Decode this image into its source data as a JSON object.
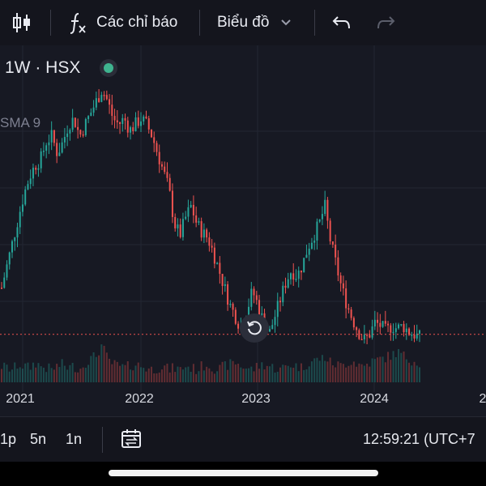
{
  "toolbar": {
    "candle_icon": "candlestick-icon",
    "indicators_label": "Các chỉ báo",
    "chart_type_label": "Biểu đồ",
    "undo_icon": "undo-icon",
    "redo_icon": "redo-icon"
  },
  "legend": {
    "text": "1W · HSX",
    "status_color": "#3fb48f",
    "sma_label": "SMA 9"
  },
  "colors": {
    "up": "#26a69a",
    "down": "#ef5350",
    "background": "#171923",
    "price_line": "#ef5350"
  },
  "chart_data": {
    "type": "candlestick",
    "interval": "1W",
    "x_ticks": [
      "2021",
      "2022",
      "2023",
      "2024",
      "2"
    ],
    "price_shape": [
      0.28,
      0.36,
      0.44,
      0.52,
      0.6,
      0.66,
      0.7,
      0.72,
      0.78,
      0.8,
      0.74,
      0.78,
      0.84,
      0.86,
      0.8,
      0.84,
      0.88,
      0.92,
      0.96,
      0.92,
      0.86,
      0.84,
      0.86,
      0.82,
      0.84,
      0.86,
      0.84,
      0.8,
      0.74,
      0.68,
      0.62,
      0.5,
      0.46,
      0.52,
      0.56,
      0.5,
      0.47,
      0.45,
      0.4,
      0.34,
      0.28,
      0.22,
      0.18,
      0.14,
      0.2,
      0.27,
      0.22,
      0.16,
      0.12,
      0.18,
      0.24,
      0.3,
      0.34,
      0.32,
      0.36,
      0.42,
      0.46,
      0.5,
      0.56,
      0.44,
      0.36,
      0.28,
      0.22,
      0.17,
      0.13,
      0.1,
      0.12,
      0.16,
      0.15,
      0.13,
      0.15,
      0.14,
      0.15,
      0.13,
      0.12,
      0.11
    ],
    "volume_shape": [
      0.3,
      0.25,
      0.2,
      0.35,
      0.3,
      0.25,
      0.4,
      0.3,
      0.25,
      0.2,
      0.3,
      0.35,
      0.25,
      0.3,
      0.2,
      0.4,
      0.5,
      0.6,
      0.9,
      0.5,
      0.35,
      0.3,
      0.25,
      0.3,
      0.35,
      0.3,
      0.25,
      0.2,
      0.25,
      0.3,
      0.2,
      0.25,
      0.2,
      0.3,
      0.25,
      0.2,
      0.3,
      0.35,
      0.25,
      0.2,
      0.3,
      0.35,
      0.4,
      0.3,
      0.25,
      0.2,
      0.3,
      0.35,
      0.3,
      0.25,
      0.2,
      0.3,
      0.35,
      0.3,
      0.25,
      0.4,
      0.45,
      0.5,
      0.55,
      0.4,
      0.35,
      0.3,
      0.4,
      0.45,
      0.35,
      0.3,
      0.4,
      0.45,
      0.5,
      0.55,
      0.6,
      0.7,
      0.6,
      0.5,
      0.45,
      0.4
    ],
    "current_price_level": 0.12
  },
  "bottom_bar": {
    "ranges": [
      "1p",
      "5n",
      "1n"
    ],
    "compare_icon": "date-range-icon",
    "clock": "12:59:21 (UTC+7"
  }
}
